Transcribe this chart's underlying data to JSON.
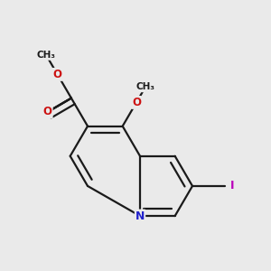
{
  "bg_color": "#eaeaea",
  "bond_color": "#1a1a1a",
  "bond_width": 1.6,
  "dbo": 0.055,
  "N_color": "#2222cc",
  "O_color": "#cc1111",
  "I_color": "#bb00bb",
  "shorten": 0.1,
  "N": [
    0.18,
    -0.18
  ],
  "C3": [
    0.46,
    -0.18
  ],
  "C2": [
    0.6,
    0.06
  ],
  "C1": [
    0.46,
    0.3
  ],
  "C8a": [
    0.18,
    0.3
  ],
  "C8": [
    0.04,
    0.54
  ],
  "C7": [
    -0.24,
    0.54
  ],
  "C6": [
    -0.38,
    0.3
  ],
  "C5": [
    -0.24,
    0.06
  ],
  "rc6": [
    -0.1,
    0.3
  ],
  "rc5": [
    0.32,
    0.06
  ]
}
